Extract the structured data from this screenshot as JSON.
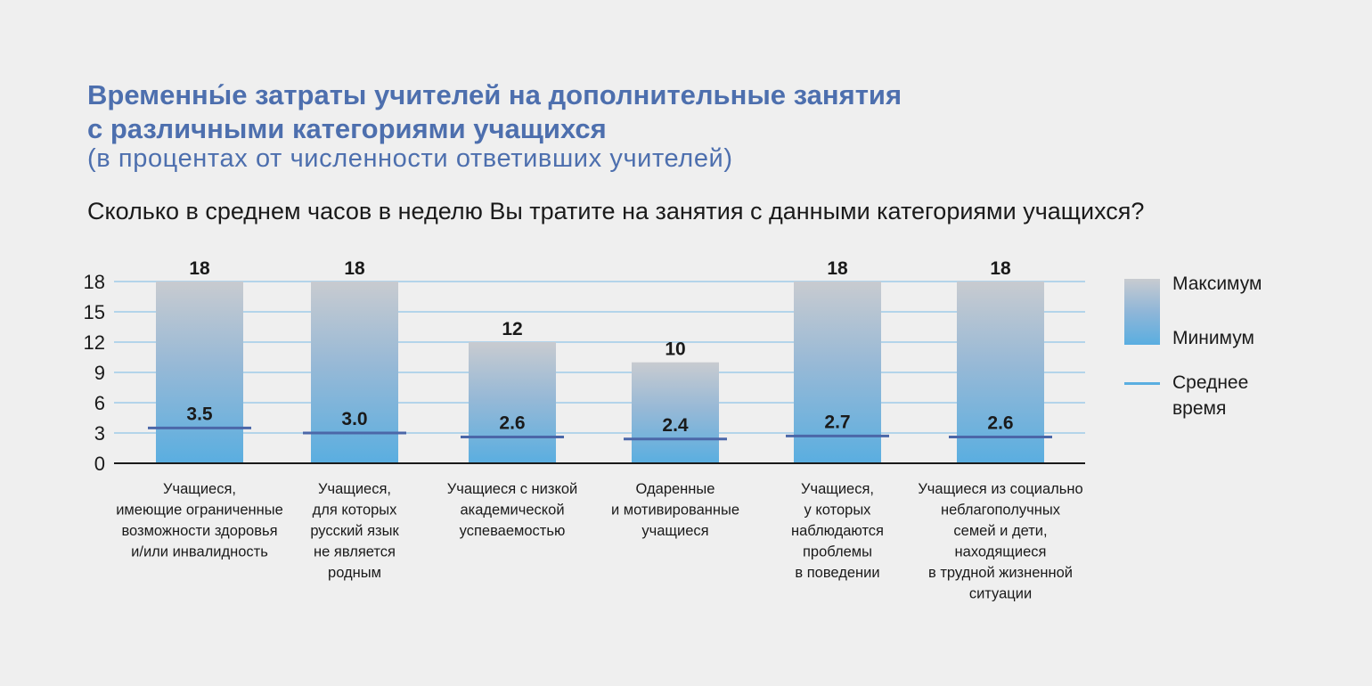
{
  "title_line1": "Временны́е затраты учителей на дополнительные занятия",
  "title_line2": "с различными категориями учащихся",
  "subtitle": "(в процентах от численности ответивших учителей)",
  "question": "Сколько в среднем часов в неделю Вы тратите на занятия с данными категориями учащихся?",
  "legend": {
    "max_label": "Максимум",
    "min_label": "Минимум",
    "avg_label_line1": "Среднее",
    "avg_label_line2": "время"
  },
  "colors": {
    "bar_top": "#c8cbd0",
    "bar_bottom": "#5aaee0",
    "avg_line": "#4b67a8",
    "grid": "#9fcbe8",
    "title": "#4d6fae"
  },
  "chart_data": {
    "type": "bar",
    "yticks": [
      0,
      3,
      6,
      9,
      12,
      15,
      18
    ],
    "ylim": [
      0,
      18
    ],
    "grid": true,
    "legend_position": "right",
    "categories": [
      [
        "Учащиеся,",
        "имеющие ограниченные",
        "возможности здоровья",
        "и/или инвалидность"
      ],
      [
        "Учащиеся,",
        "для которых",
        "русский язык",
        "не является",
        "родным"
      ],
      [
        "Учащиеся с низкой",
        "академической",
        "успеваемостью"
      ],
      [
        "Одаренные",
        "и мотивированные",
        "учащиеся"
      ],
      [
        "Учащиеся,",
        "у которых",
        "наблюдаются",
        "проблемы",
        "в поведении"
      ],
      [
        "Учащиеся из социально",
        "неблагополучных",
        "семей и дети,",
        "находящиеся",
        "в трудной жизненной",
        "ситуации"
      ]
    ],
    "series": [
      {
        "name": "Максимум",
        "values": [
          18,
          18,
          12,
          10,
          18,
          18
        ]
      },
      {
        "name": "Минимум",
        "values": [
          0,
          0,
          0,
          0,
          0,
          0
        ]
      },
      {
        "name": "Среднее время",
        "values": [
          3.5,
          3.0,
          2.6,
          2.4,
          2.7,
          2.6
        ]
      }
    ],
    "max_labels": [
      "18",
      "18",
      "12",
      "10",
      "18",
      "18"
    ],
    "avg_labels": [
      "3.5",
      "3.0",
      "2.6",
      "2.4",
      "2.7",
      "2.6"
    ]
  }
}
